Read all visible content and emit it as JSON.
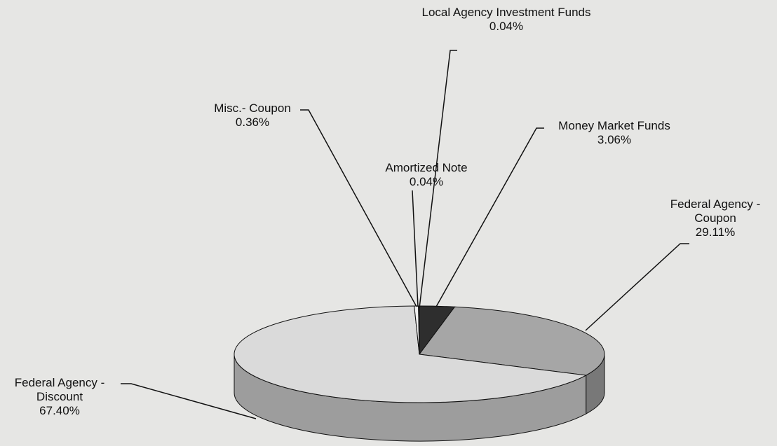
{
  "chart_data": {
    "type": "pie",
    "categories": [
      "Money Market Funds",
      "Federal Agency - Coupon",
      "Federal Agency - Discount",
      "Misc.- Coupon",
      "Amortized Note",
      "Local Agency Investment Funds"
    ],
    "values": [
      3.06,
      29.11,
      67.4,
      0.36,
      0.04,
      0.04
    ],
    "value_labels": [
      "3.06%",
      "29.11%",
      "67.40%",
      "0.36%",
      "0.04%",
      "0.04%"
    ],
    "colors": [
      "#2e2e2e",
      "#a6a6a6",
      "#dadada",
      "#efefef",
      "#ffffff",
      "#1c1c1c"
    ]
  }
}
